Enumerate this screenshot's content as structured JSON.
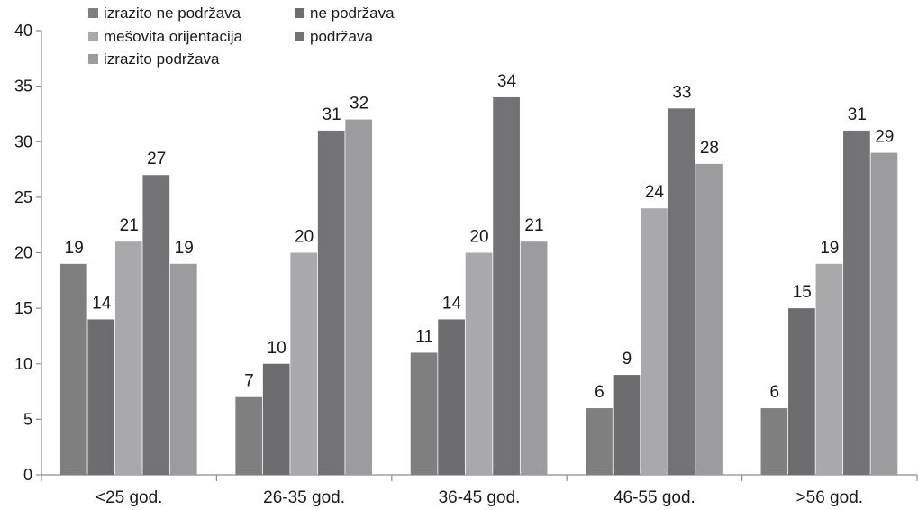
{
  "chart_data": {
    "type": "bar",
    "categories": [
      "<25 god.",
      "26-35 god.",
      "36-45 god.",
      "46-55 god.",
      ">56 god."
    ],
    "series": [
      {
        "name": "izrazito ne podržava",
        "color": "#7f7f80",
        "values": [
          19,
          7,
          11,
          6,
          6
        ]
      },
      {
        "name": "ne podržava",
        "color": "#6d6d6f",
        "values": [
          14,
          10,
          14,
          9,
          15
        ]
      },
      {
        "name": "mešovita orijentacija",
        "color": "#a9a9ab",
        "values": [
          21,
          20,
          20,
          24,
          19
        ]
      },
      {
        "name": "podržava",
        "color": "#737376",
        "values": [
          27,
          31,
          34,
          33,
          31
        ]
      },
      {
        "name": "izrazito podržava",
        "color": "#9c9c9e",
        "values": [
          19,
          32,
          21,
          28,
          29
        ]
      }
    ],
    "y_ticks": [
      "0",
      "5",
      "10",
      "15",
      "20",
      "25",
      "30",
      "35",
      "40"
    ],
    "ylim": [
      0,
      40
    ],
    "grid": false,
    "legend_position": "top-left",
    "data_labels": true,
    "title": "",
    "xlabel": "",
    "ylabel": ""
  }
}
